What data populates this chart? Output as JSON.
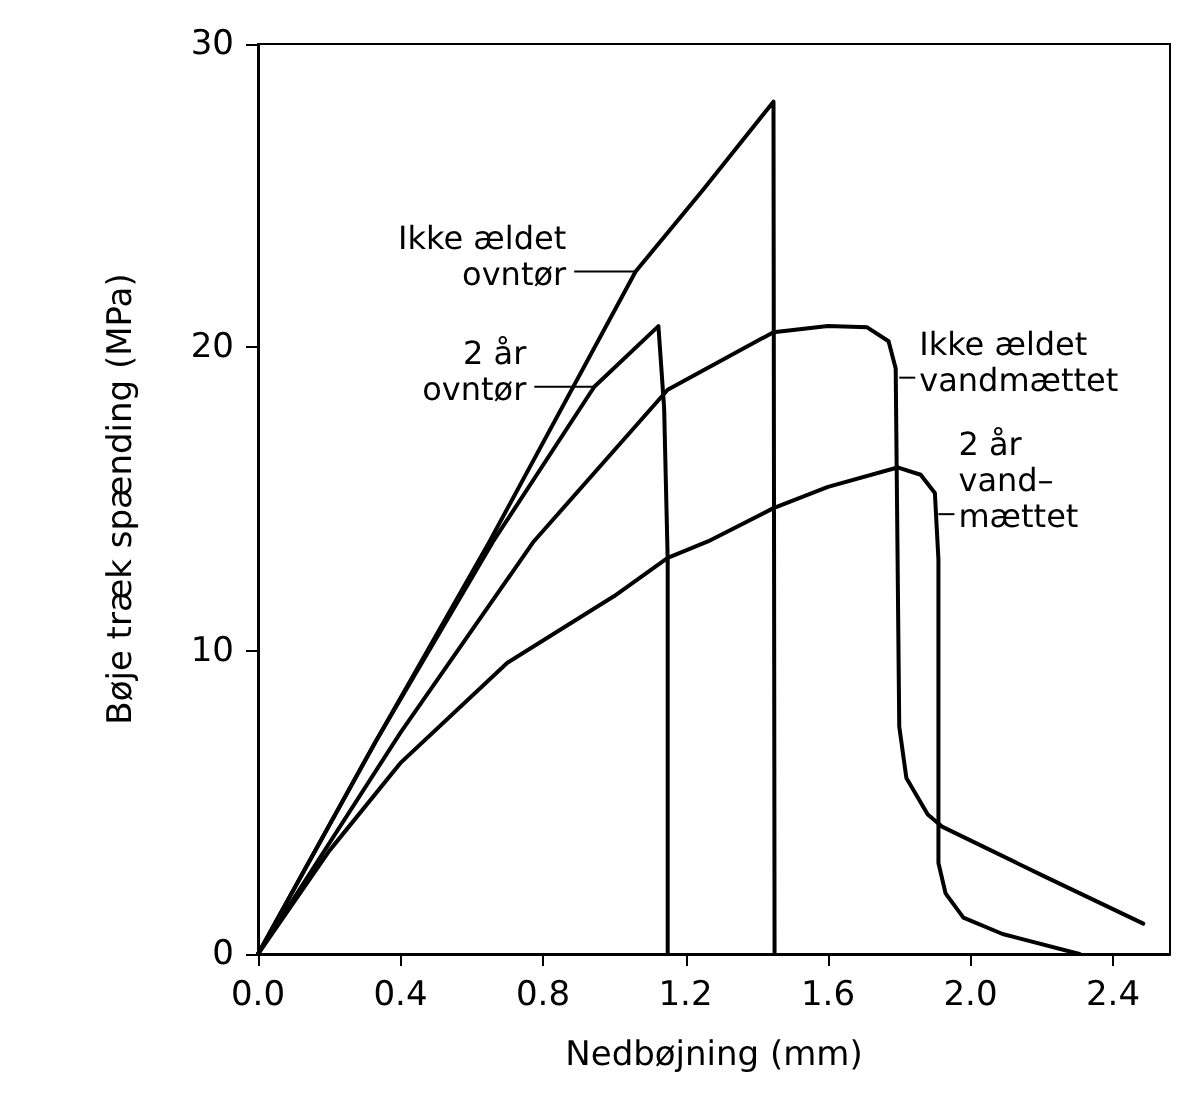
{
  "chart_data": {
    "type": "line",
    "xlabel": "Nedbøjning (mm)",
    "ylabel": "Bøje træk spænding (MPa)",
    "xlim": [
      0,
      2.56
    ],
    "ylim": [
      0,
      30
    ],
    "xticks": [
      {
        "value": 0,
        "label": "0.0"
      },
      {
        "value": 0.4,
        "label": "0.4"
      },
      {
        "value": 0.8,
        "label": "0.8"
      },
      {
        "value": 1.2,
        "label": "1.2"
      },
      {
        "value": 1.6,
        "label": "1.6"
      },
      {
        "value": 2.0,
        "label": "2.0"
      },
      {
        "value": 2.4,
        "label": "2.4"
      }
    ],
    "yticks": [
      0,
      10,
      20,
      30
    ],
    "grid": false,
    "marker": "none",
    "line_style": "solid",
    "series": [
      {
        "color": "#000000",
        "x": [
          0,
          0.33,
          0.65,
          1.06,
          1.25,
          1.447,
          1.45
        ],
        "values": [
          0,
          7,
          13.6,
          22.5,
          25.2,
          28.1,
          0
        ]
      },
      {
        "color": "#000000",
        "x": [
          0,
          0.33,
          0.66,
          0.944,
          1.124,
          1.14,
          1.15,
          1.15
        ],
        "values": [
          0,
          7,
          13.6,
          18.7,
          20.7,
          18,
          13,
          0
        ]
      },
      {
        "color": "#000000",
        "x": [
          0,
          0.4,
          0.774,
          1.15,
          1.447,
          1.6,
          1.71,
          1.77,
          1.79,
          1.8,
          1.82,
          1.88,
          1.92,
          2.2,
          2.485
        ],
        "values": [
          0,
          7.3,
          13.6,
          18.6,
          20.5,
          20.7,
          20.66,
          20.2,
          19.3,
          7.5,
          5.8,
          4.6,
          4.2,
          2.6,
          1.0
        ]
      },
      {
        "color": "#000000",
        "x": [
          0,
          0.2,
          0.4,
          0.7,
          1.0,
          1.15,
          1.263,
          1.447,
          1.6,
          1.795,
          1.86,
          1.9,
          1.91,
          1.91,
          1.93,
          1.98,
          2.09,
          2.306
        ],
        "values": [
          0,
          3.4,
          6.3,
          9.6,
          11.8,
          13.06,
          13.6,
          14.7,
          15.4,
          16.04,
          15.8,
          15.2,
          13,
          3,
          2.0,
          1.2,
          0.66,
          0
        ]
      }
    ],
    "annotations": [
      {
        "text": "Ikke ældet\novntør",
        "x": 1.056,
        "y": 22.5
      },
      {
        "text": "2 år\novntør",
        "x": 0.944,
        "y": 18.7
      },
      {
        "text": "Ikke ældet\nvandmættet",
        "x": 1.8,
        "y": 19.0
      },
      {
        "text": "2 år\nvand–\nmættet",
        "x": 1.91,
        "y": 14.5
      }
    ]
  }
}
